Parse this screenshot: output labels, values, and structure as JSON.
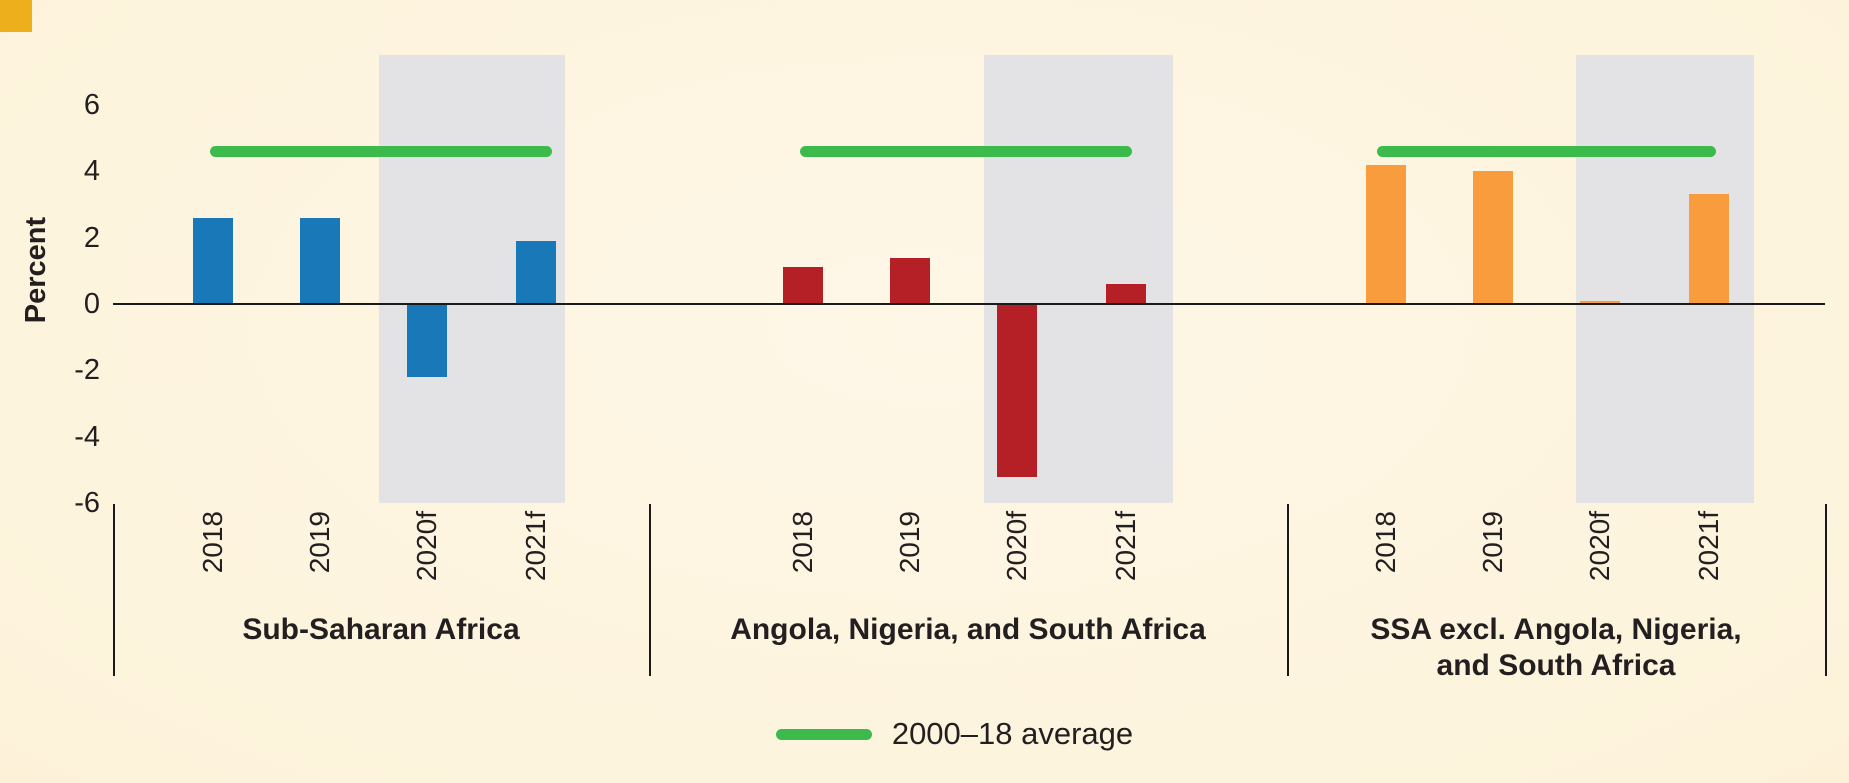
{
  "chart_data": {
    "type": "bar",
    "ylabel": "Percent",
    "ylim": [
      -6,
      7.5
    ],
    "yticks": [
      6,
      4,
      2,
      0,
      -2,
      -4,
      -6
    ],
    "ytick_labels": [
      "6",
      "4",
      "2",
      "0",
      "-2",
      "-4",
      "-6"
    ],
    "categories": [
      "2018",
      "2019",
      "2020f",
      "2021f"
    ],
    "forecast_band_categories": [
      "2020f",
      "2021f"
    ],
    "groups": [
      {
        "name": "Sub-Saharan Africa",
        "name_lines": [
          "Sub-Saharan Africa"
        ],
        "color": "#1878B8",
        "values": [
          2.6,
          2.6,
          -2.2,
          1.9
        ],
        "average_2000_18": 4.6
      },
      {
        "name": "Angola, Nigeria, and South Africa",
        "name_lines": [
          "Angola, Nigeria, and South Africa"
        ],
        "color": "#B42025",
        "values": [
          1.1,
          1.4,
          -5.2,
          0.6
        ],
        "average_2000_18": 4.6
      },
      {
        "name": "SSA excl. Angola, Nigeria, and South Africa",
        "name_lines": [
          "SSA excl. Angola, Nigeria,",
          "and South Africa"
        ],
        "color": "#F89C3E",
        "values": [
          4.2,
          4.0,
          0.1,
          3.3
        ],
        "average_2000_18": 4.6
      }
    ],
    "legend": [
      {
        "label": "2000–18 average",
        "marker": "line",
        "color": "#3CBA4C"
      }
    ],
    "grid": false,
    "legend_position": "bottom-center"
  },
  "theme": {
    "background_center": "#FEF7E7",
    "background": "#FDF3DB",
    "background_edge": "#FBE9C4",
    "gold_accent": "#EDB01C",
    "forecast_band": "#E3E3E6",
    "axis_color": "#1A1A1A",
    "text_color": "#231F20"
  }
}
